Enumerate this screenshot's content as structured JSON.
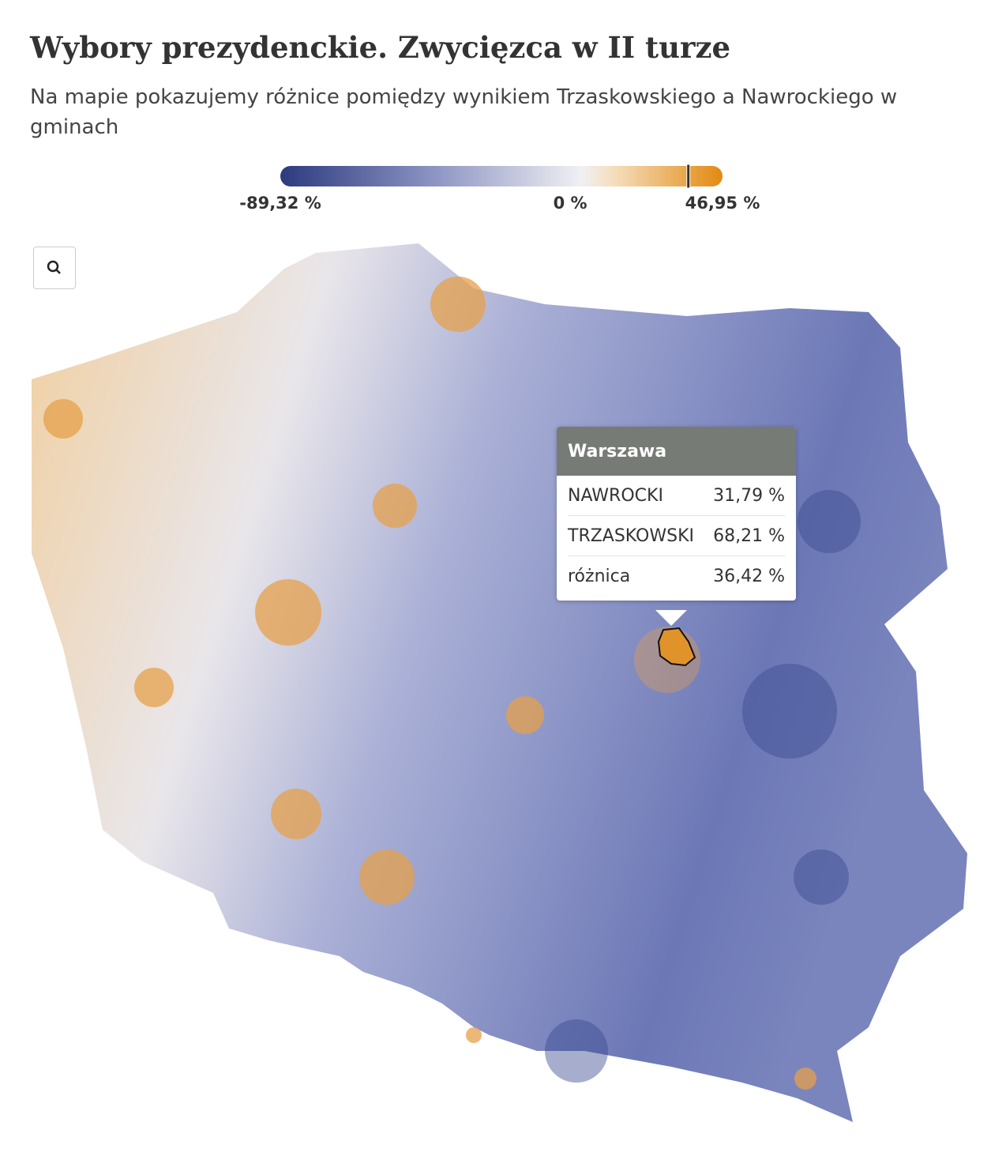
{
  "header": {
    "title": "Wybory prezydenckie. Zwycięzca w II turze",
    "subtitle": "Na mapie pokazujemy różnice pomiędzy wynikiem Trzaskowskiego a Nawrockiego w gminach"
  },
  "legend": {
    "ticks": [
      {
        "value": -89.32,
        "label": "-89,32 %"
      },
      {
        "value": 0,
        "label": "0 %"
      },
      {
        "value": 46.95,
        "label": "46,95 %"
      }
    ]
  },
  "tooltip": {
    "title": "Warszawa",
    "rows": [
      {
        "label": "NAWROCKI",
        "value": 31.79,
        "value_label": "31,79 %"
      },
      {
        "label": "TRZASKOWSKI",
        "value": 68.21,
        "value_label": "68,21 %"
      },
      {
        "label": "różnica",
        "value": 36.42,
        "value_label": "36,42 %"
      }
    ]
  }
}
